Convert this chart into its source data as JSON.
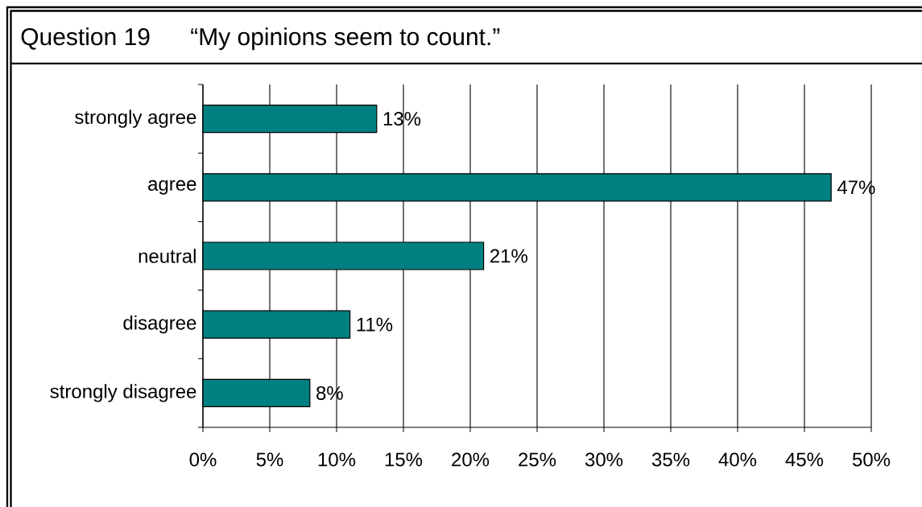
{
  "chart_data": {
    "type": "bar",
    "orientation": "horizontal",
    "title": "Question 19",
    "subtitle": "“My opinions seem to count.”",
    "categories": [
      "strongly agree",
      "agree",
      "neutral",
      "disagree",
      "strongly disagree"
    ],
    "values": [
      13,
      47,
      21,
      11,
      8
    ],
    "value_labels": [
      "13%",
      "47%",
      "21%",
      "11%",
      "8%"
    ],
    "color": "#008080",
    "xlim": [
      0,
      50
    ],
    "xticks": [
      {
        "value": 0,
        "label": "0%"
      },
      {
        "value": 5,
        "label": "5%"
      },
      {
        "value": 10,
        "label": "10%"
      },
      {
        "value": 15,
        "label": "15%"
      },
      {
        "value": 20,
        "label": "20%"
      },
      {
        "value": 25,
        "label": "25%"
      },
      {
        "value": 30,
        "label": "30%"
      },
      {
        "value": 35,
        "label": "35%"
      },
      {
        "value": 40,
        "label": "40%"
      },
      {
        "value": 45,
        "label": "45%"
      },
      {
        "value": 50,
        "label": "50%"
      }
    ],
    "grid": "x"
  }
}
